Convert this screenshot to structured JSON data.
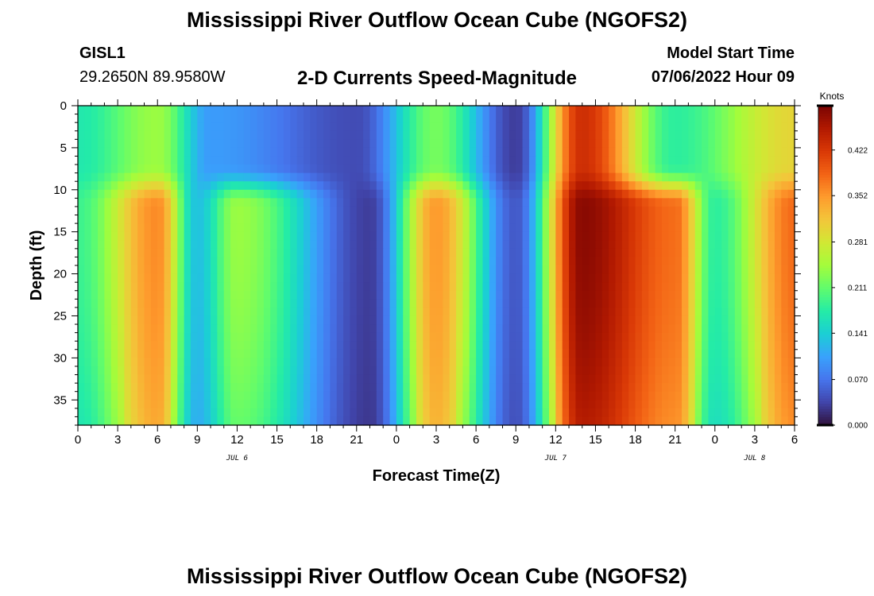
{
  "header": {
    "title": "Mississippi River Outflow Ocean Cube (NGOFS2)",
    "station_id": "GISL1",
    "station_coords": "29.2650N  89.9580W",
    "product": "2-D Currents Speed-Magnitude",
    "model_start_label": "Model Start Time",
    "model_start_value": "07/06/2022 Hour 09"
  },
  "footer": {
    "title_repeat": "Mississippi River Outflow Ocean Cube (NGOFS2)"
  },
  "chart_data": {
    "type": "heatmap",
    "xlabel": "Forecast Time(Z)",
    "ylabel": "Depth (ft)",
    "x_unit": "hours from 00Z Jul 6",
    "xlim": [
      0,
      54
    ],
    "ylim": [
      0,
      38
    ],
    "y_inverted": true,
    "x_tick_labels": [
      "0",
      "3",
      "6",
      "9",
      "12",
      "15",
      "18",
      "21",
      "0",
      "3",
      "6",
      "9",
      "12",
      "15",
      "18",
      "21",
      "0",
      "3",
      "6"
    ],
    "date_labels": [
      {
        "text": "JUL 6",
        "x": 12
      },
      {
        "text": "JUL 7",
        "x": 36
      },
      {
        "text": "JUL 8",
        "x": 51
      }
    ],
    "y_ticks": [
      0,
      5,
      10,
      15,
      20,
      25,
      30,
      35
    ],
    "colorbar": {
      "label": "Knots",
      "min": 0.0,
      "max": 0.49,
      "tick_values": [
        0.0,
        0.07,
        0.141,
        0.211,
        0.281,
        0.352,
        0.422
      ],
      "tick_labels": [
        "0.000",
        "0.070",
        "0.141",
        "0.211",
        "0.281",
        "0.352",
        "0.422"
      ],
      "colormap": [
        "#30123b",
        "#4145ab",
        "#4675ed",
        "#39a2fc",
        "#1bcfd4",
        "#24eca6",
        "#61fc6c",
        "#a4fc3b",
        "#d1e834",
        "#f3c63a",
        "#fe9b2d",
        "#f36315",
        "#d93806",
        "#b11901",
        "#7a0403"
      ]
    },
    "speed_estimates_surface_0_9ft": [
      {
        "time": 0,
        "speed": 0.17
      },
      {
        "time": 6,
        "speed": 0.24
      },
      {
        "time": 10,
        "speed": 0.1
      },
      {
        "time": 21,
        "speed": 0.04
      },
      {
        "time": 27,
        "speed": 0.22
      },
      {
        "time": 33,
        "speed": 0.03
      },
      {
        "time": 38,
        "speed": 0.43
      },
      {
        "time": 45,
        "speed": 0.18
      },
      {
        "time": 54,
        "speed": 0.3
      }
    ],
    "speed_estimates_lower_12_38ft": [
      {
        "time": 0,
        "speed": 0.19
      },
      {
        "time": 6,
        "speed": 0.36
      },
      {
        "time": 9,
        "speed": 0.13
      },
      {
        "time": 12,
        "speed": 0.24
      },
      {
        "time": 22,
        "speed": 0.03
      },
      {
        "time": 27,
        "speed": 0.35
      },
      {
        "time": 33,
        "speed": 0.05
      },
      {
        "time": 38,
        "speed": 0.48
      },
      {
        "time": 45,
        "speed": 0.38
      },
      {
        "time": 48,
        "speed": 0.18
      },
      {
        "time": 54,
        "speed": 0.38
      }
    ]
  }
}
